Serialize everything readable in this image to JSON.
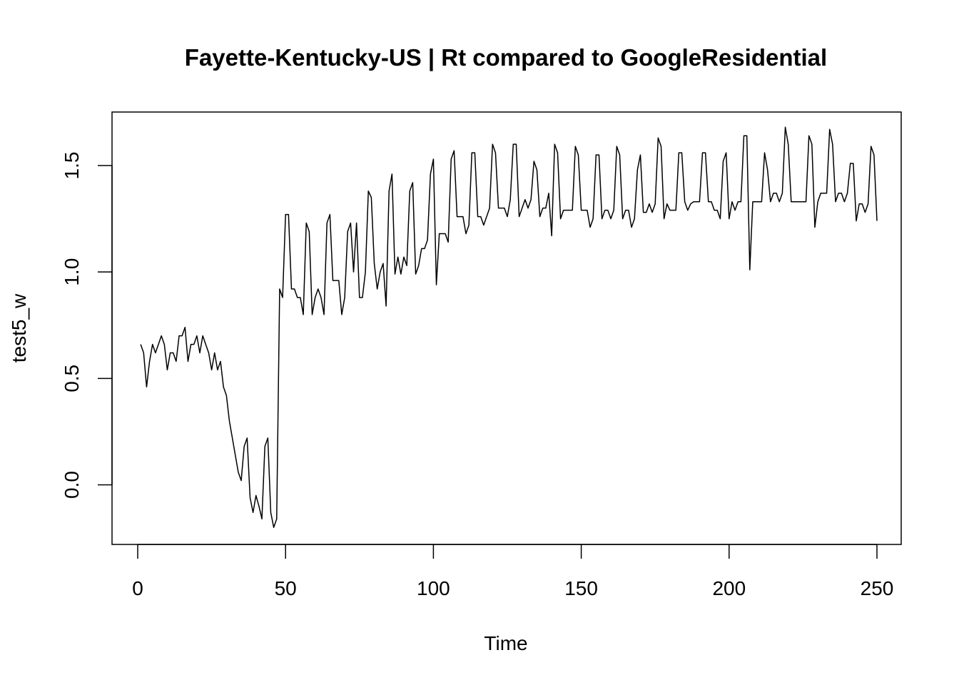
{
  "chart_data": {
    "type": "line",
    "title": "Fayette-Kentucky-US | Rt compared to GoogleResidential",
    "xlabel": "Time",
    "ylabel": "test5_w",
    "xlim": [
      1,
      248
    ],
    "ylim": [
      -0.2,
      1.68
    ],
    "xticks": [
      0,
      50,
      100,
      150,
      200,
      250
    ],
    "yticks": [
      0.0,
      0.5,
      1.0,
      1.5
    ],
    "xtick_labels": [
      "0",
      "50",
      "100",
      "150",
      "200",
      "250"
    ],
    "ytick_labels": [
      "0.0",
      "0.5",
      "1.0",
      "1.5"
    ],
    "grid": false,
    "legend": "none",
    "line_color": "#000000",
    "series": [
      {
        "x_start": 1,
        "values": [
          0.66,
          0.62,
          0.46,
          0.58,
          0.66,
          0.62,
          0.66,
          0.7,
          0.66,
          0.54,
          0.62,
          0.62,
          0.58,
          0.7,
          0.7,
          0.74,
          0.58,
          0.66,
          0.66,
          0.7,
          0.62,
          0.7,
          0.66,
          0.62,
          0.54,
          0.62,
          0.54,
          0.58,
          0.46,
          0.42,
          0.3,
          0.22,
          0.14,
          0.06,
          0.02,
          0.18,
          0.22,
          -0.06,
          -0.13,
          -0.05,
          -0.1,
          -0.16,
          0.18,
          0.22,
          -0.13,
          -0.2,
          -0.16,
          0.92,
          0.88,
          1.27,
          1.27,
          0.92,
          0.92,
          0.88,
          0.88,
          0.8,
          1.23,
          1.19,
          0.8,
          0.88,
          0.92,
          0.88,
          0.8,
          1.23,
          1.27,
          0.96,
          0.96,
          0.96,
          0.8,
          0.88,
          1.19,
          1.23,
          1.0,
          1.23,
          0.88,
          0.88,
          1.0,
          1.38,
          1.35,
          1.04,
          0.92,
          1.0,
          1.04,
          0.84,
          1.38,
          1.46,
          0.99,
          1.07,
          0.99,
          1.07,
          1.03,
          1.38,
          1.42,
          0.99,
          1.03,
          1.11,
          1.11,
          1.15,
          1.46,
          1.53,
          0.94,
          1.18,
          1.18,
          1.18,
          1.14,
          1.53,
          1.57,
          1.26,
          1.26,
          1.26,
          1.18,
          1.22,
          1.56,
          1.56,
          1.26,
          1.26,
          1.22,
          1.26,
          1.3,
          1.6,
          1.56,
          1.3,
          1.3,
          1.3,
          1.26,
          1.34,
          1.6,
          1.6,
          1.26,
          1.3,
          1.34,
          1.3,
          1.34,
          1.52,
          1.48,
          1.26,
          1.3,
          1.3,
          1.37,
          1.17,
          1.6,
          1.56,
          1.25,
          1.29,
          1.29,
          1.29,
          1.29,
          1.59,
          1.55,
          1.29,
          1.29,
          1.29,
          1.21,
          1.25,
          1.55,
          1.55,
          1.25,
          1.29,
          1.29,
          1.25,
          1.29,
          1.59,
          1.55,
          1.25,
          1.29,
          1.29,
          1.21,
          1.25,
          1.48,
          1.55,
          1.28,
          1.28,
          1.32,
          1.28,
          1.32,
          1.63,
          1.59,
          1.25,
          1.32,
          1.29,
          1.29,
          1.29,
          1.56,
          1.56,
          1.33,
          1.29,
          1.32,
          1.33,
          1.33,
          1.33,
          1.56,
          1.56,
          1.33,
          1.33,
          1.29,
          1.29,
          1.25,
          1.52,
          1.56,
          1.25,
          1.33,
          1.29,
          1.33,
          1.33,
          1.64,
          1.64,
          1.01,
          1.33,
          1.33,
          1.33,
          1.33,
          1.56,
          1.48,
          1.33,
          1.37,
          1.37,
          1.33,
          1.37,
          1.68,
          1.6,
          1.33,
          1.33,
          1.33,
          1.33,
          1.33,
          1.33,
          1.64,
          1.6,
          1.21,
          1.33,
          1.37,
          1.37,
          1.37,
          1.67,
          1.6,
          1.33,
          1.37,
          1.37,
          1.33,
          1.37,
          1.51,
          1.51,
          1.24,
          1.32,
          1.32,
          1.28,
          1.32,
          1.59,
          1.55,
          1.24
        ]
      }
    ]
  }
}
